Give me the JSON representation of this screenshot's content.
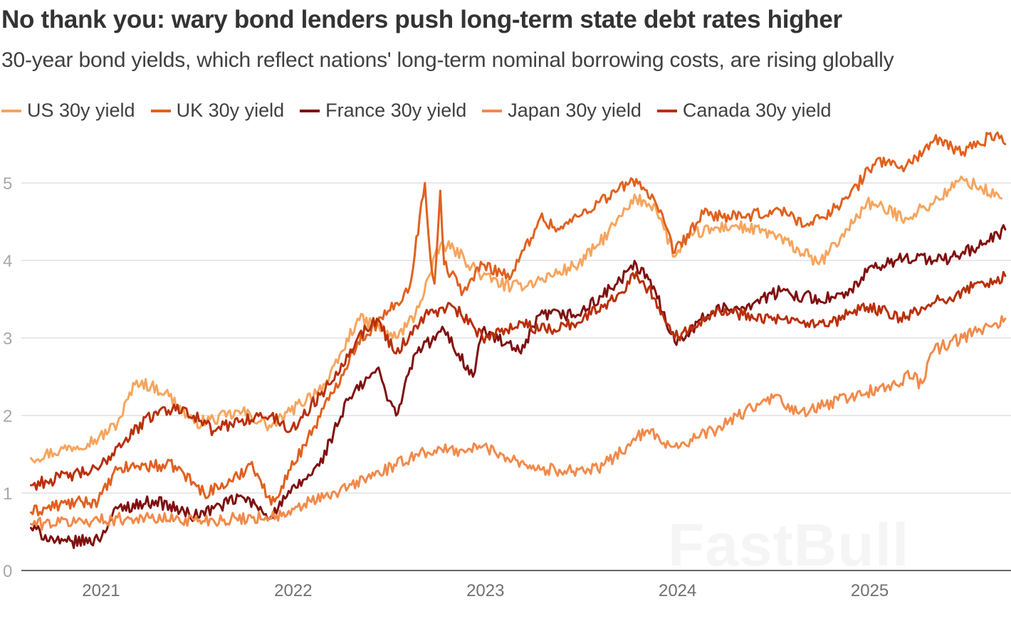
{
  "header": {
    "title": "No thank you: wary bond lenders push long-term state debt rates higher",
    "subtitle": "30-year bond yields, which reflect nations' long-term nominal borrowing costs, are rising globally"
  },
  "watermark": "FastBull",
  "chart_data": {
    "type": "line",
    "title": "No thank you: wary bond lenders push long-term state debt rates higher",
    "subtitle": "30-year bond yields, which reflect nations' long-term nominal borrowing costs, are rising globally",
    "xlabel": "",
    "ylabel": "",
    "xlim": [
      2020.6,
      2025.75
    ],
    "ylim": [
      0,
      5.8
    ],
    "x_ticks": [
      2021,
      2022,
      2023,
      2024,
      2025
    ],
    "x_tick_labels": [
      "2021",
      "2022",
      "2023",
      "2024",
      "2025"
    ],
    "y_ticks": [
      0,
      1,
      2,
      3,
      4,
      5
    ],
    "y_tick_labels": [
      "0",
      "1",
      "2",
      "3",
      "4",
      "5"
    ],
    "grid": "horizontal",
    "legend_position": "top-left",
    "series": [
      {
        "name": "US 30y yield",
        "color": "#f6a55e",
        "x": [
          2020.65,
          2020.8,
          2021.0,
          2021.1,
          2021.2,
          2021.35,
          2021.5,
          2021.6,
          2021.75,
          2021.9,
          2022.0,
          2022.2,
          2022.35,
          2022.45,
          2022.55,
          2022.65,
          2022.78,
          2022.85,
          2023.0,
          2023.15,
          2023.3,
          2023.5,
          2023.6,
          2023.8,
          2023.9,
          2024.0,
          2024.1,
          2024.3,
          2024.5,
          2024.7,
          2024.75,
          2024.9,
          2025.0,
          2025.2,
          2025.35,
          2025.5,
          2025.7
        ],
        "y": [
          1.45,
          1.55,
          1.7,
          1.9,
          2.45,
          2.3,
          1.9,
          1.95,
          2.05,
          1.85,
          2.05,
          2.45,
          3.25,
          3.15,
          3.0,
          3.3,
          4.2,
          4.15,
          3.8,
          3.65,
          3.75,
          3.95,
          4.2,
          4.8,
          4.7,
          4.05,
          4.35,
          4.45,
          4.35,
          4.05,
          3.95,
          4.4,
          4.75,
          4.55,
          4.75,
          5.05,
          4.8
        ]
      },
      {
        "name": "UK 30y yield",
        "color": "#e0611f",
        "x": [
          2020.65,
          2020.8,
          2021.0,
          2021.1,
          2021.2,
          2021.4,
          2021.55,
          2021.7,
          2021.8,
          2021.9,
          2022.0,
          2022.2,
          2022.35,
          2022.5,
          2022.62,
          2022.7,
          2022.73,
          2022.75,
          2022.78,
          2022.8,
          2022.9,
          2023.0,
          2023.15,
          2023.3,
          2023.4,
          2023.6,
          2023.8,
          2023.9,
          2024.0,
          2024.15,
          2024.35,
          2024.55,
          2024.7,
          2024.9,
          2025.05,
          2025.2,
          2025.35,
          2025.5,
          2025.68,
          2025.72
        ],
        "y": [
          0.75,
          0.85,
          0.9,
          1.3,
          1.35,
          1.35,
          1.0,
          1.15,
          1.4,
          0.85,
          1.3,
          2.2,
          2.95,
          3.3,
          3.65,
          5.0,
          4.0,
          3.7,
          4.9,
          3.95,
          3.6,
          3.95,
          3.8,
          4.55,
          4.4,
          4.75,
          5.05,
          4.75,
          4.1,
          4.6,
          4.55,
          4.65,
          4.45,
          4.8,
          5.3,
          5.2,
          5.55,
          5.4,
          5.65,
          5.5
        ]
      },
      {
        "name": "France 30y yield",
        "color": "#7f1010",
        "x": [
          2020.65,
          2020.8,
          2021.0,
          2021.1,
          2021.3,
          2021.5,
          2021.6,
          2021.75,
          2021.9,
          2022.0,
          2022.15,
          2022.3,
          2022.45,
          2022.55,
          2022.65,
          2022.8,
          2022.95,
          2023.0,
          2023.2,
          2023.3,
          2023.5,
          2023.7,
          2023.8,
          2023.9,
          2024.0,
          2024.2,
          2024.35,
          2024.55,
          2024.75,
          2024.9,
          2025.0,
          2025.2,
          2025.4,
          2025.6,
          2025.72
        ],
        "y": [
          0.55,
          0.35,
          0.4,
          0.8,
          0.9,
          0.7,
          0.8,
          0.95,
          0.7,
          1.0,
          1.35,
          2.2,
          2.6,
          2.0,
          2.8,
          3.1,
          2.5,
          3.1,
          2.8,
          3.3,
          3.3,
          3.7,
          3.95,
          3.6,
          2.95,
          3.35,
          3.4,
          3.6,
          3.5,
          3.55,
          3.85,
          4.05,
          4.0,
          4.2,
          4.4
        ]
      },
      {
        "name": "Japan 30y yield",
        "color": "#f28a4a",
        "x": [
          2020.65,
          2020.8,
          2021.0,
          2021.2,
          2021.4,
          2021.6,
          2021.8,
          2022.0,
          2022.1,
          2022.2,
          2022.4,
          2022.55,
          2022.65,
          2022.75,
          2022.9,
          2023.0,
          2023.1,
          2023.2,
          2023.3,
          2023.4,
          2023.6,
          2023.75,
          2023.85,
          2024.0,
          2024.2,
          2024.4,
          2024.55,
          2024.6,
          2024.7,
          2024.85,
          2025.0,
          2025.15,
          2025.25,
          2025.27,
          2025.35,
          2025.5,
          2025.72
        ],
        "y": [
          0.6,
          0.62,
          0.65,
          0.68,
          0.66,
          0.65,
          0.68,
          0.72,
          0.9,
          0.95,
          1.2,
          1.35,
          1.5,
          1.55,
          1.55,
          1.6,
          1.5,
          1.4,
          1.3,
          1.3,
          1.3,
          1.6,
          1.8,
          1.6,
          1.8,
          2.1,
          2.25,
          2.05,
          2.05,
          2.2,
          2.3,
          2.4,
          2.55,
          2.35,
          2.85,
          3.0,
          3.25
        ]
      },
      {
        "name": "Canada 30y yield",
        "color": "#b8300b",
        "x": [
          2020.65,
          2020.8,
          2021.0,
          2021.1,
          2021.3,
          2021.45,
          2021.6,
          2021.75,
          2021.9,
          2022.0,
          2022.2,
          2022.35,
          2022.45,
          2022.55,
          2022.7,
          2022.85,
          2023.0,
          2023.2,
          2023.3,
          2023.5,
          2023.7,
          2023.8,
          2023.9,
          2024.0,
          2024.2,
          2024.4,
          2024.6,
          2024.8,
          2024.9,
          2025.0,
          2025.2,
          2025.35,
          2025.55,
          2025.72
        ],
        "y": [
          1.1,
          1.2,
          1.3,
          1.6,
          2.05,
          2.1,
          1.8,
          1.95,
          2.0,
          1.8,
          2.4,
          3.0,
          3.25,
          2.8,
          3.3,
          3.4,
          3.0,
          3.2,
          3.1,
          3.2,
          3.55,
          3.85,
          3.5,
          3.0,
          3.35,
          3.3,
          3.2,
          3.15,
          3.3,
          3.4,
          3.25,
          3.45,
          3.65,
          3.8
        ]
      }
    ]
  }
}
